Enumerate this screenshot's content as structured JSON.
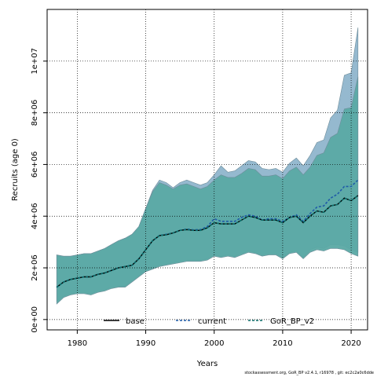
{
  "chart_data": {
    "type": "area",
    "xlabel": "Years",
    "ylabel": "Recruits (age 0)",
    "xlim": [
      1975.6,
      2022.4
    ],
    "ylim": [
      -400000,
      12000000
    ],
    "x_ticks": [
      1980,
      1990,
      2000,
      2010,
      2020
    ],
    "x_tick_labels": [
      "1980",
      "1990",
      "2000",
      "2010",
      "2020"
    ],
    "y_ticks": [
      0,
      2000000,
      4000000,
      6000000,
      8000000,
      10000000
    ],
    "y_tick_labels": [
      "0e+00",
      "2e+06",
      "4e+06",
      "6e+06",
      "8e+06",
      "1e+07"
    ],
    "grid": true,
    "legend_position": "bottom",
    "x": [
      1977,
      1978,
      1979,
      1980,
      1981,
      1982,
      1983,
      1984,
      1985,
      1986,
      1987,
      1988,
      1989,
      1990,
      1991,
      1992,
      1993,
      1994,
      1995,
      1996,
      1997,
      1998,
      1999,
      2000,
      2001,
      2002,
      2003,
      2004,
      2005,
      2006,
      2007,
      2008,
      2009,
      2010,
      2011,
      2012,
      2013,
      2014,
      2015,
      2016,
      2017,
      2018,
      2019,
      2020,
      2021
    ],
    "series": [
      {
        "name": "base",
        "style": "solid",
        "color": "#000000",
        "values": [
          1250000,
          1450000,
          1550000,
          1600000,
          1650000,
          1650000,
          1750000,
          1800000,
          1900000,
          2000000,
          2050000,
          2100000,
          2350000,
          2700000,
          3050000,
          3250000,
          3280000,
          3350000,
          3450000,
          3480000,
          3450000,
          3450000,
          3550000,
          3750000,
          3700000,
          3700000,
          3700000,
          3850000,
          4000000,
          3950000,
          3850000,
          3850000,
          3850000,
          3750000,
          3950000,
          4000000,
          3750000,
          4000000,
          4200000,
          4150000,
          4400000,
          4450000,
          4700000,
          4600000,
          4800000
        ]
      },
      {
        "name": "current",
        "style": "dashed",
        "color": "#1f5ba8",
        "values": [
          1250000,
          1450000,
          1550000,
          1600000,
          1650000,
          1650000,
          1750000,
          1800000,
          1900000,
          2000000,
          2050000,
          2100000,
          2350000,
          2700000,
          3050000,
          3250000,
          3300000,
          3350000,
          3450000,
          3500000,
          3470000,
          3480000,
          3600000,
          3900000,
          3800000,
          3800000,
          3800000,
          3950000,
          4050000,
          4000000,
          3850000,
          3900000,
          3900000,
          3800000,
          3950000,
          4050000,
          3800000,
          4100000,
          4350000,
          4400000,
          4700000,
          4850000,
          5150000,
          5150000,
          5400000
        ]
      },
      {
        "name": "GoR_BP_v2",
        "style": "dashed",
        "color": "#0b6e6a",
        "values": [
          1250000,
          1450000,
          1550000,
          1600000,
          1650000,
          1650000,
          1750000,
          1800000,
          1900000,
          2000000,
          2050000,
          2100000,
          2350000,
          2700000,
          3050000,
          3250000,
          3280000,
          3350000,
          3450000,
          3480000,
          3450000,
          3450000,
          3550000,
          3750000,
          3700000,
          3700000,
          3700000,
          3850000,
          4000000,
          3950000,
          3850000,
          3850000,
          3850000,
          3750000,
          3950000,
          4000000,
          3750000,
          4000000,
          4200000,
          4150000,
          4400000,
          4450000,
          4700000,
          4600000,
          4800000
        ]
      }
    ],
    "intervals": [
      {
        "name": "current",
        "fill": "#8fb5cc",
        "lower": [
          700000,
          900000,
          1000000,
          1050000,
          1050000,
          1000000,
          1100000,
          1150000,
          1250000,
          1300000,
          1300000,
          1500000,
          1700000,
          1900000,
          2000000,
          2100000,
          2150000,
          2200000,
          2250000,
          2300000,
          2300000,
          2300000,
          2350000,
          2500000,
          2450000,
          2500000,
          2450000,
          2550000,
          2650000,
          2600000,
          2500000,
          2550000,
          2550000,
          2400000,
          2600000,
          2650000,
          2400000,
          2700000,
          2800000,
          2750000,
          2900000,
          2900000,
          2850000,
          2700000,
          2600000
        ],
        "upper": [
          2500000,
          2450000,
          2450000,
          2500000,
          2550000,
          2550000,
          2650000,
          2750000,
          2900000,
          3050000,
          3150000,
          3300000,
          3600000,
          4300000,
          5000000,
          5400000,
          5300000,
          5100000,
          5300000,
          5400000,
          5300000,
          5200000,
          5300000,
          5600000,
          5950000,
          5700000,
          5750000,
          5950000,
          6150000,
          6100000,
          5850000,
          5800000,
          5850000,
          5700000,
          6050000,
          6250000,
          5950000,
          6350000,
          6850000,
          6950000,
          7800000,
          8100000,
          9450000,
          9550000,
          11300000
        ]
      },
      {
        "name": "base",
        "fill": "#5aa9a4",
        "lower": [
          600000,
          850000,
          950000,
          1000000,
          1000000,
          950000,
          1050000,
          1100000,
          1200000,
          1250000,
          1250000,
          1450000,
          1650000,
          1850000,
          1950000,
          2050000,
          2100000,
          2150000,
          2200000,
          2250000,
          2250000,
          2250000,
          2300000,
          2450000,
          2400000,
          2450000,
          2400000,
          2500000,
          2600000,
          2550000,
          2450000,
          2500000,
          2500000,
          2350000,
          2550000,
          2600000,
          2350000,
          2600000,
          2700000,
          2650000,
          2750000,
          2750000,
          2700000,
          2550000,
          2450000
        ],
        "upper": [
          2500000,
          2450000,
          2450000,
          2500000,
          2550000,
          2550000,
          2650000,
          2750000,
          2900000,
          3050000,
          3150000,
          3300000,
          3600000,
          4300000,
          4950000,
          5300000,
          5200000,
          5050000,
          5200000,
          5250000,
          5150000,
          5050000,
          5150000,
          5400000,
          5600000,
          5500000,
          5500000,
          5650000,
          5850000,
          5800000,
          5550000,
          5550000,
          5600000,
          5450000,
          5750000,
          5900000,
          5600000,
          5900000,
          6350000,
          6450000,
          7050000,
          7200000,
          8150000,
          8200000,
          9400000
        ]
      }
    ]
  },
  "footer": "stockassessment.org, GoR_BP v2.4.1, r16978 , git: ec2c2a0c6dde"
}
